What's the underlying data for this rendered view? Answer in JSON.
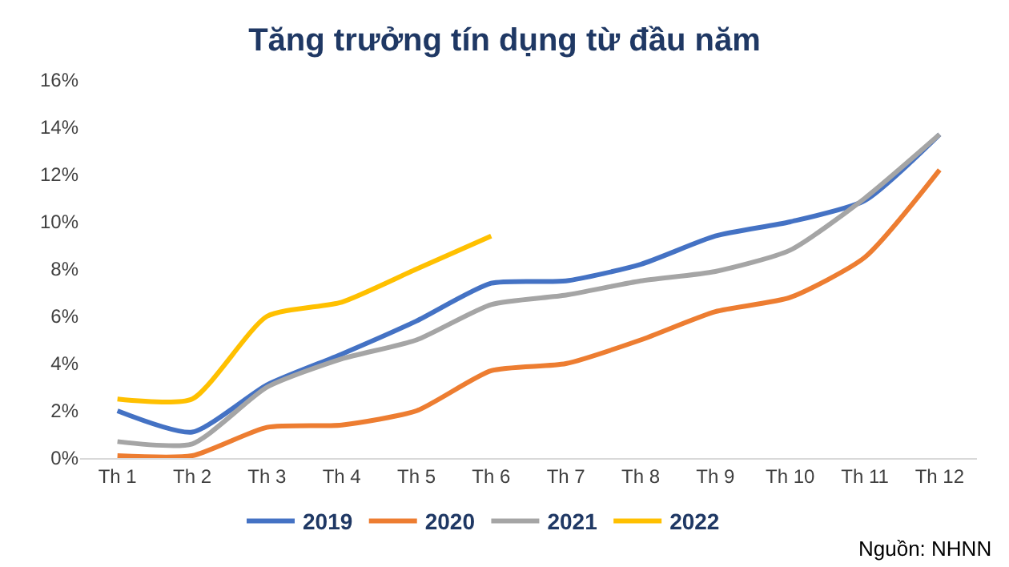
{
  "chart_data": {
    "type": "line",
    "title": "Tăng trưởng tín dụng từ đầu năm",
    "categories": [
      "Th 1",
      "Th 2",
      "Th 3",
      "Th 4",
      "Th 5",
      "Th 6",
      "Th 7",
      "Th 8",
      "Th 9",
      "Th 10",
      "Th 11",
      "Th 12"
    ],
    "series": [
      {
        "name": "2019",
        "color": "#4472c4",
        "values": [
          2.0,
          1.1,
          3.1,
          4.4,
          5.8,
          7.4,
          7.5,
          8.2,
          9.4,
          10.0,
          10.9,
          13.7
        ]
      },
      {
        "name": "2020",
        "color": "#ed7d31",
        "values": [
          0.1,
          0.1,
          1.3,
          1.4,
          2.0,
          3.7,
          4.0,
          5.0,
          6.2,
          6.8,
          8.5,
          12.2
        ]
      },
      {
        "name": "2021",
        "color": "#a5a5a5",
        "values": [
          0.7,
          0.6,
          3.0,
          4.2,
          5.0,
          6.5,
          6.9,
          7.5,
          7.9,
          8.8,
          11.0,
          13.7
        ]
      },
      {
        "name": "2022",
        "color": "#ffc000",
        "values": [
          2.5,
          2.5,
          6.0,
          6.6,
          8.0,
          9.4,
          null,
          null,
          null,
          null,
          null,
          null
        ]
      }
    ],
    "ylim": [
      0,
      16
    ],
    "yticks": [
      {
        "value": 0,
        "label": "0%"
      },
      {
        "value": 2,
        "label": "2%"
      },
      {
        "value": 4,
        "label": "4%"
      },
      {
        "value": 6,
        "label": "6%"
      },
      {
        "value": 8,
        "label": "8%"
      },
      {
        "value": 10,
        "label": "10%"
      },
      {
        "value": 12,
        "label": "12%"
      },
      {
        "value": 14,
        "label": "14%"
      },
      {
        "value": 16,
        "label": "16%"
      }
    ],
    "grid": false,
    "legend": "bottom",
    "marker": "none",
    "line_style": "solid",
    "annotations": [
      "Nguồn: NHNN"
    ]
  }
}
